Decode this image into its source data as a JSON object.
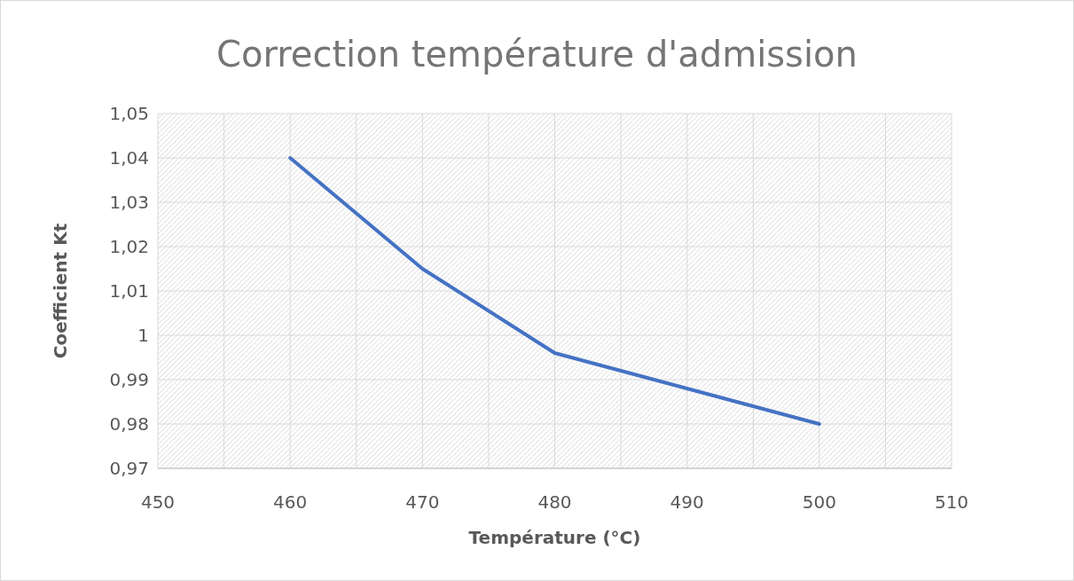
{
  "chart_data": {
    "type": "line",
    "title": "Correction température d'admission",
    "xlabel": "Température (°C)",
    "ylabel": "Coefficient Kt",
    "x": [
      460,
      470,
      480,
      490,
      500
    ],
    "series": [
      {
        "color": "#4472c4",
        "values": [
          1.04,
          1.015,
          0.996,
          0.988,
          0.98
        ]
      }
    ],
    "xlim": [
      450,
      510
    ],
    "xticks": [
      450,
      {
        "value": 455,
        "label": null
      },
      460,
      {
        "value": 465,
        "label": null
      },
      470,
      {
        "value": 475,
        "label": null
      },
      480,
      {
        "value": 485,
        "label": null
      },
      490,
      {
        "value": 495,
        "label": null
      },
      500,
      {
        "value": 505,
        "label": null
      },
      510
    ],
    "ylim": [
      0.97,
      1.05
    ],
    "yticks": [
      {
        "value": 0.97,
        "label": "0,97"
      },
      {
        "value": 0.98,
        "label": "0,98"
      },
      {
        "value": 0.99,
        "label": "0,99"
      },
      {
        "value": 1,
        "label": "1"
      },
      {
        "value": 1.01,
        "label": "1,01"
      },
      {
        "value": 1.02,
        "label": "1,02"
      },
      {
        "value": 1.03,
        "label": "1,03"
      },
      {
        "value": 1.04,
        "label": "1,04"
      },
      {
        "value": 1.05,
        "label": "1,05"
      }
    ],
    "grid": true,
    "marker": "none",
    "line_style": "solid"
  }
}
